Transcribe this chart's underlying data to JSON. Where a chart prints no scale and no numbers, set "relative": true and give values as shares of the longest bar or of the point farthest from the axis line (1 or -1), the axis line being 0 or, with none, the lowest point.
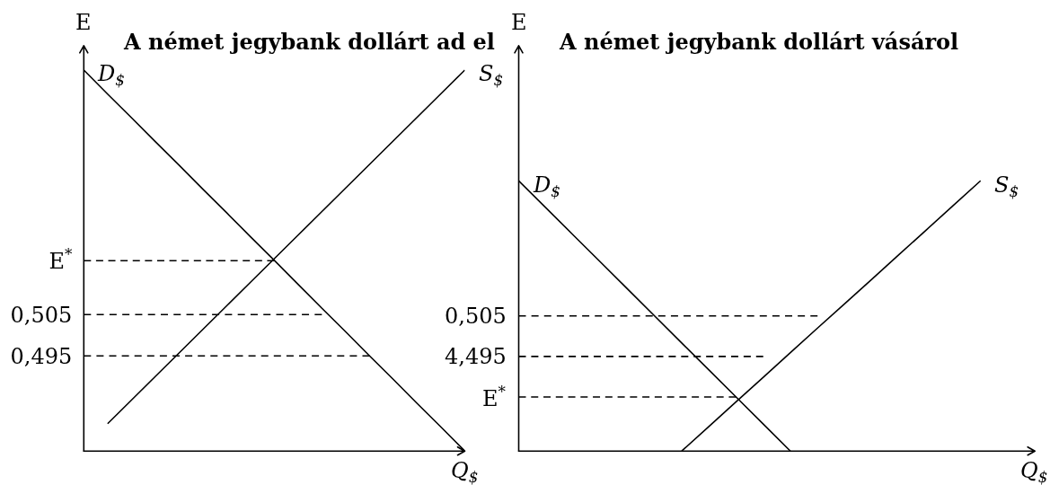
{
  "chart_data": [
    {
      "type": "line",
      "title": "A német jegybank dollárt ad el",
      "xlabel": "Q$_{$}$",
      "ylabel": "E",
      "legend": false,
      "grid": false,
      "marker": "none",
      "line_style": "solid",
      "tick_labels": "y",
      "categories": [
        null,
        null,
        null,
        null,
        null,
        null,
        null,
        null,
        null,
        null,
        null,
        null,
        null,
        null,
        null,
        null,
        null
      ],
      "ylim": [
        0.472,
        0.57
      ],
      "yticks": [
        {
          "value": 0.518,
          "label": "E$^{*}$"
        },
        {
          "value": 0.505,
          "label": "0,505"
        },
        {
          "value": 0.495,
          "label": "0,495"
        }
      ],
      "series": [
        {
          "name": "D$_{$}$",
          "color": "#000000",
          "values": [
            0.5641,
            0.5583,
            0.5526,
            0.5468,
            0.5411,
            0.5353,
            0.5296,
            0.5238,
            0.5181,
            0.5123,
            0.5065,
            0.5008,
            0.495,
            0.4893,
            0.4835,
            0.4778,
            0.472
          ]
        },
        {
          "name": "S$_{$}$",
          "color": "#000000",
          "values": [
            null,
            0.4786,
            0.4843,
            0.49,
            0.4957,
            0.5014,
            0.5071,
            0.5128,
            0.5185,
            0.5242,
            0.5299,
            0.5356,
            0.5413,
            0.547,
            0.5527,
            0.5584,
            0.5641
          ]
        },
        {
          "color": "#000000",
          "line_style": "dashed",
          "values": [
            0.518,
            0.518,
            0.518,
            0.518,
            0.518,
            0.518,
            0.518,
            0.518,
            0.518,
            null,
            null,
            null,
            null,
            null,
            null,
            null,
            null
          ]
        },
        {
          "color": "#000000",
          "line_style": "dashed",
          "values": [
            0.505,
            0.505,
            0.505,
            0.505,
            0.505,
            0.505,
            0.505,
            0.505,
            0.505,
            0.505,
            0.505,
            null,
            null,
            null,
            null,
            null,
            null
          ]
        },
        {
          "color": "#000000",
          "line_style": "dashed",
          "values": [
            0.495,
            0.495,
            0.495,
            0.495,
            0.495,
            0.495,
            0.495,
            0.495,
            0.495,
            0.495,
            0.495,
            0.495,
            0.495,
            null,
            null,
            null,
            null
          ]
        }
      ]
    },
    {
      "type": "line",
      "title": "A német jegybank dollárt vásárol",
      "xlabel": "Q$_{$}$",
      "ylabel": "E",
      "legend": false,
      "grid": false,
      "marker": "none",
      "line_style": "solid",
      "tick_labels": false,
      "relative": true,
      "categories": [
        null,
        null,
        null,
        null,
        null,
        null,
        null,
        null,
        null,
        null,
        null,
        null,
        null,
        null,
        null,
        null,
        null,
        null,
        null,
        null
      ],
      "series": [
        {
          "name": "D$_{$}$",
          "color": "#000000",
          "values": [
            1,
            0.9,
            0.8,
            0.7,
            0.6,
            0.5,
            0.4,
            0.3,
            0.2,
            0.1,
            0,
            null,
            null,
            null,
            null,
            null,
            null,
            null,
            null,
            null
          ]
        },
        {
          "name": "S$_{$}$",
          "color": "#000000",
          "values": [
            null,
            null,
            null,
            null,
            null,
            null,
            0,
            0.091,
            0.182,
            0.273,
            0.364,
            0.455,
            0.545,
            0.636,
            0.727,
            0.818,
            0.909,
            1,
            null,
            null
          ]
        },
        {
          "name": "0,505",
          "color": "#000000",
          "line_style": "dashed",
          "values": [
            0.5,
            0.5,
            0.5,
            0.5,
            0.5,
            0.5,
            0.5,
            0.5,
            0.5,
            0.5,
            0.5,
            0.5,
            null,
            null,
            null,
            null,
            null,
            null,
            null,
            null
          ]
        },
        {
          "name": "4,495",
          "color": "#000000",
          "line_style": "dashed",
          "values": [
            0.35,
            0.35,
            0.35,
            0.35,
            0.35,
            0.35,
            0.35,
            0.35,
            0.35,
            0.35,
            null,
            null,
            null,
            null,
            null,
            null,
            null,
            null,
            null,
            null
          ]
        },
        {
          "name": "E$^{*}$",
          "color": "#000000",
          "line_style": "dashed",
          "values": [
            0.2,
            0.2,
            0.2,
            0.2,
            0.2,
            0.2,
            0.2,
            0.2,
            0.2,
            null,
            null,
            null,
            null,
            null,
            null,
            null,
            null,
            null,
            null,
            null
          ]
        }
      ]
    }
  ]
}
